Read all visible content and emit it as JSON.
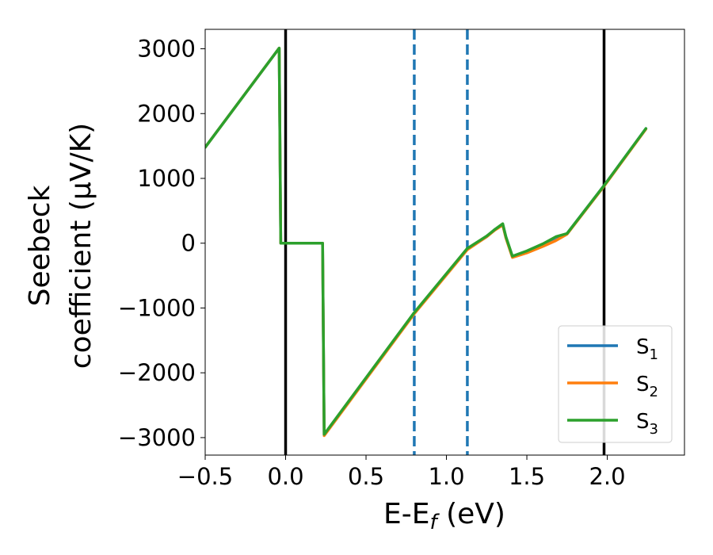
{
  "chart_data": {
    "type": "line",
    "title": "",
    "xlabel": "E-E",
    "xlabel_sub": "f",
    "xlabel_unit": " (eV)",
    "ylabel_line1": "Seebeck",
    "ylabel_line2": "coefficient  (μV/K)",
    "xlim": [
      -0.5,
      2.48
    ],
    "ylim": [
      -3270,
      3300
    ],
    "x_ticks": [
      -0.5,
      0.0,
      0.5,
      1.0,
      1.5,
      2.0
    ],
    "x_tick_labels": [
      "−0.5",
      "0.0",
      "0.5",
      "1.0",
      "1.5",
      "2.0"
    ],
    "y_ticks": [
      -3000,
      -2000,
      -1000,
      0,
      1000,
      2000,
      3000
    ],
    "y_tick_labels": [
      "−3000",
      "−2000",
      "−1000",
      "0",
      "1000",
      "2000",
      "3000"
    ],
    "grid": false,
    "legend_placement": "lower-right",
    "vertical_lines": [
      {
        "x": 0.0,
        "style": "solid",
        "color": "#000000"
      },
      {
        "x": 0.8,
        "style": "dashed",
        "color": "#1f77b4"
      },
      {
        "x": 1.13,
        "style": "dashed",
        "color": "#1f77b4"
      },
      {
        "x": 1.98,
        "style": "solid",
        "color": "#000000"
      }
    ],
    "series": [
      {
        "name": "S",
        "subscript": "1",
        "color": "#1f77b4",
        "x": [
          -0.5,
          -0.04,
          -0.03,
          0.23,
          0.24,
          0.8,
          1.13,
          1.25,
          1.3,
          1.35,
          1.37,
          1.41,
          1.5,
          1.6,
          1.68,
          1.75,
          1.98,
          2.24
        ],
        "y": [
          1480,
          3010,
          0,
          0,
          -2960,
          -1080,
          -90,
          100,
          210,
          280,
          90,
          -210,
          -140,
          -40,
          50,
          150,
          890,
          1770
        ]
      },
      {
        "name": "S",
        "subscript": "2",
        "color": "#ff7f0e",
        "x": [
          -0.5,
          -0.04,
          -0.03,
          0.23,
          0.24,
          0.8,
          1.13,
          1.25,
          1.3,
          1.35,
          1.37,
          1.41,
          1.5,
          1.6,
          1.68,
          1.75,
          1.98,
          2.24
        ],
        "y": [
          1480,
          3010,
          0,
          0,
          -2970,
          -1090,
          -100,
          100,
          200,
          280,
          80,
          -220,
          -150,
          -50,
          40,
          140,
          880,
          1760
        ]
      },
      {
        "name": "S",
        "subscript": "3",
        "color": "#2ca02c",
        "x": [
          -0.5,
          -0.04,
          -0.03,
          0.23,
          0.24,
          0.8,
          1.13,
          1.25,
          1.3,
          1.35,
          1.37,
          1.41,
          1.5,
          1.6,
          1.68,
          1.75,
          1.98,
          2.24
        ],
        "y": [
          1480,
          3010,
          0,
          0,
          -2950,
          -1070,
          -80,
          110,
          210,
          300,
          100,
          -200,
          -120,
          -10,
          100,
          150,
          890,
          1770
        ]
      }
    ]
  }
}
